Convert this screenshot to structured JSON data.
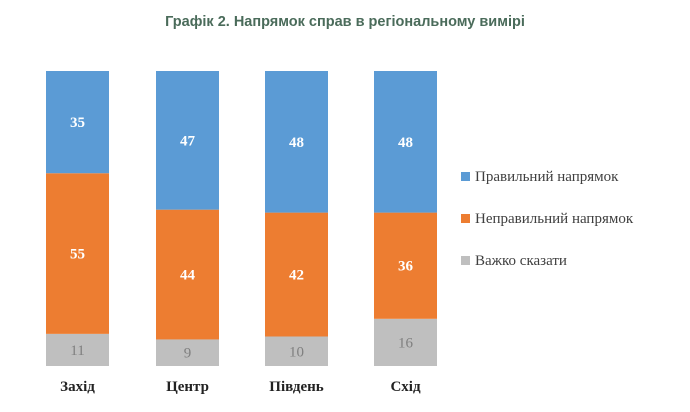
{
  "chart_data": {
    "type": "bar",
    "stacked": true,
    "title": "Графік 2. Напрямок справ в регіональному вимірі",
    "categories": [
      "Захід",
      "Центр",
      "Південь",
      "Схід"
    ],
    "series": [
      {
        "name": "Правильний напрямок",
        "color": "#5b9bd5",
        "values": [
          35,
          47,
          48,
          48
        ]
      },
      {
        "name": "Неправильний напрямок",
        "color": "#ed7d31",
        "values": [
          55,
          44,
          42,
          36
        ]
      },
      {
        "name": "Важко сказати",
        "color": "#bfbfbf",
        "values": [
          11,
          9,
          10,
          16
        ]
      }
    ],
    "stack_order": [
      "Важко сказати",
      "Неправильний напрямок",
      "Правильний напрямок"
    ],
    "ylim": [
      0,
      100
    ],
    "grid": false,
    "legend_position": "right"
  }
}
